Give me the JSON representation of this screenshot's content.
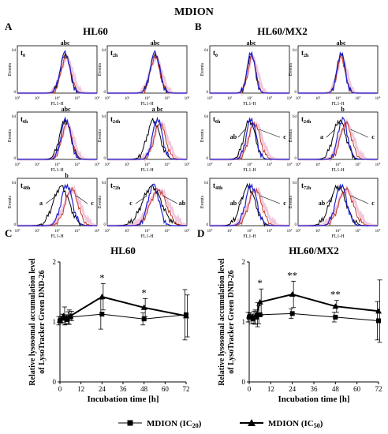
{
  "figure_title": "MDION",
  "panels": {
    "A": {
      "letter": "A",
      "title": "HL60"
    },
    "B": {
      "letter": "B",
      "title": "HL60/MX2"
    },
    "C": {
      "letter": "C",
      "title": "HL60"
    },
    "D": {
      "letter": "D",
      "title": "HL60/MX2"
    }
  },
  "flow": {
    "ylabel": "Events",
    "xlabel": "FL1-H",
    "ytick": "64",
    "xticks_exp": [
      "0",
      "1",
      "2",
      "3",
      "4"
    ],
    "colors": {
      "a": "#000000",
      "b": "#1f1fd0",
      "c": "#c0392b"
    },
    "hl60": [
      {
        "time_main": "t",
        "time_sub": "0",
        "annotation": "abc",
        "arrows": []
      },
      {
        "time_main": "t",
        "time_sub": "2h",
        "annotation": "abc",
        "arrows": []
      },
      {
        "time_main": "t",
        "time_sub": "6h",
        "annotation": "abc",
        "arrows": []
      },
      {
        "time_main": "t",
        "time_sub": "24h",
        "annotation": "a bc",
        "arrows": []
      },
      {
        "time_main": "t",
        "time_sub": "48h",
        "annotation": "b",
        "arrows": [
          "a",
          "c"
        ]
      },
      {
        "time_main": "t",
        "time_sub": "72h",
        "annotation": "",
        "arrows": [
          "c",
          "ab"
        ]
      }
    ],
    "mx2": [
      {
        "time_main": "t",
        "time_sub": "0",
        "annotation": "abc",
        "arrows": []
      },
      {
        "time_main": "t",
        "time_sub": "2h",
        "annotation": "abc",
        "arrows": []
      },
      {
        "time_main": "t",
        "time_sub": "6h",
        "annotation": "",
        "arrows": [
          "ab",
          "c"
        ]
      },
      {
        "time_main": "t",
        "time_sub": "24h",
        "annotation": "b",
        "arrows": [
          "a",
          "c"
        ]
      },
      {
        "time_main": "t",
        "time_sub": "48h",
        "annotation": "",
        "arrows": [
          "ab",
          "c"
        ]
      },
      {
        "time_main": "t",
        "time_sub": "72h",
        "annotation": "",
        "arrows": [
          "ab",
          "c"
        ]
      }
    ]
  },
  "chart_data": [
    {
      "panel": "C",
      "type": "line",
      "title": "HL60",
      "xlabel": "Incubation time [h]",
      "ylabel_line1": "Relative lysosomal accumulation level",
      "ylabel_line2": "of LysoTracker Green DND-26",
      "x": [
        0,
        2,
        4,
        6,
        24,
        48,
        72
      ],
      "xticks": [
        0,
        12,
        24,
        36,
        48,
        60,
        72
      ],
      "yticks": [
        0,
        1,
        2
      ],
      "xlim": [
        0,
        72
      ],
      "ylim": [
        0,
        2
      ],
      "series": [
        {
          "name": "MDION (IC20)",
          "marker": "square",
          "values": [
            1.02,
            1.06,
            1.04,
            1.08,
            1.13,
            1.05,
            1.12
          ],
          "errors": [
            0.07,
            0.07,
            0.08,
            0.12,
            0.25,
            0.1,
            0.42
          ]
        },
        {
          "name": "MDION (IC50)",
          "marker": "triangle",
          "values": [
            1.03,
            1.1,
            1.07,
            1.1,
            1.42,
            1.24,
            1.1
          ],
          "errors": [
            0.05,
            0.15,
            0.1,
            0.08,
            0.22,
            0.15,
            0.35
          ]
        }
      ],
      "significance": [
        {
          "x": 24,
          "label": "*"
        },
        {
          "x": 48,
          "label": "*"
        }
      ]
    },
    {
      "panel": "D",
      "type": "line",
      "title": "HL60/MX2",
      "xlabel": "Incubation time [h]",
      "ylabel_line1": "Relative lysosomal accumulation level",
      "ylabel_line2": "of LysoTracker Green DND-26",
      "x": [
        0,
        2,
        4,
        6,
        24,
        48,
        72
      ],
      "xticks": [
        0,
        12,
        24,
        36,
        48,
        60,
        72
      ],
      "yticks": [
        0,
        1,
        2
      ],
      "xlim": [
        0,
        72
      ],
      "ylim": [
        0,
        2
      ],
      "series": [
        {
          "name": "MDION (IC20)",
          "marker": "square",
          "values": [
            1.08,
            1.05,
            1.08,
            1.12,
            1.14,
            1.08,
            1.02
          ],
          "errors": [
            0.08,
            0.08,
            0.12,
            0.15,
            0.08,
            0.08,
            0.32
          ]
        },
        {
          "name": "MDION (IC50)",
          "marker": "triangle",
          "values": [
            1.1,
            1.08,
            1.12,
            1.33,
            1.46,
            1.26,
            1.18
          ],
          "errors": [
            0.05,
            0.1,
            0.2,
            0.22,
            0.22,
            0.1,
            0.52
          ]
        }
      ],
      "significance": [
        {
          "x": 6,
          "label": "*"
        },
        {
          "x": 24,
          "label": "**"
        },
        {
          "x": 48,
          "label": "**"
        }
      ]
    }
  ],
  "legend": [
    {
      "label": "MDION (IC",
      "sub": "20",
      "close": ")",
      "marker": "square"
    },
    {
      "label": "MDION (IC",
      "sub": "50",
      "close": ")",
      "marker": "triangle"
    }
  ]
}
